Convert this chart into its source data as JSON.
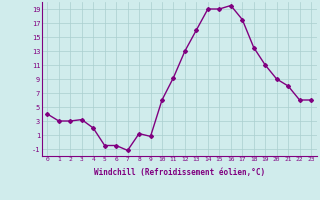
{
  "x": [
    0,
    1,
    2,
    3,
    4,
    5,
    6,
    7,
    8,
    9,
    10,
    11,
    12,
    13,
    14,
    15,
    16,
    17,
    18,
    19,
    20,
    21,
    22,
    23
  ],
  "y": [
    4.0,
    3.0,
    3.0,
    3.2,
    2.0,
    -0.5,
    -0.5,
    -1.2,
    1.2,
    0.8,
    6.0,
    9.2,
    13.0,
    16.0,
    19.0,
    19.0,
    19.5,
    17.5,
    13.5,
    11.0,
    9.0,
    8.0,
    6.0,
    6.0
  ],
  "xlim": [
    -0.5,
    23.5
  ],
  "ylim": [
    -2,
    20
  ],
  "yticks": [
    -1,
    1,
    3,
    5,
    7,
    9,
    11,
    13,
    15,
    17,
    19
  ],
  "xticks": [
    0,
    1,
    2,
    3,
    4,
    5,
    6,
    7,
    8,
    9,
    10,
    11,
    12,
    13,
    14,
    15,
    16,
    17,
    18,
    19,
    20,
    21,
    22,
    23
  ],
  "xlabel": "Windchill (Refroidissement éolien,°C)",
  "line_color": "#800080",
  "marker": "D",
  "bg_color": "#d0ecec",
  "grid_color": "#aacfcf",
  "tick_color": "#800080",
  "label_color": "#800080",
  "marker_size": 2,
  "line_width": 1.0
}
